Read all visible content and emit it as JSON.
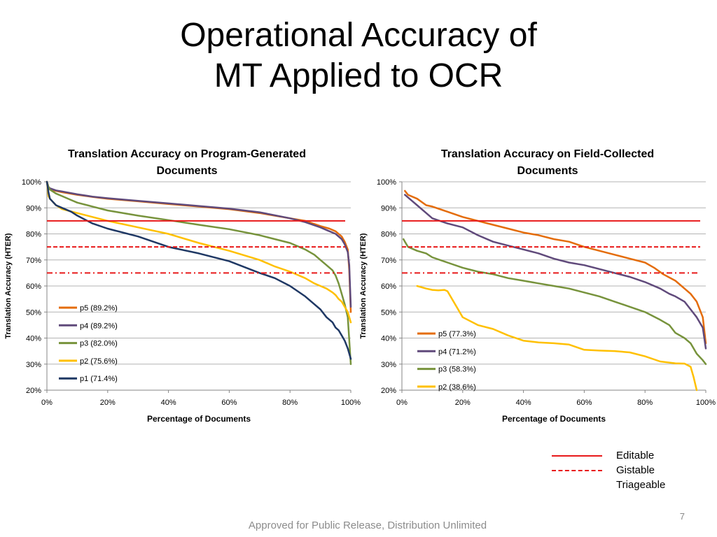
{
  "slide": {
    "title_line1": "Operational Accuracy of",
    "title_line2": "MT Applied to OCR",
    "page_number": "7",
    "footer": "Approved for Public Release, Distribution Unlimited"
  },
  "threshold_legend": [
    {
      "label": "Editable",
      "style": "solid",
      "color": "#e8191a"
    },
    {
      "label": "Gistable",
      "style": "dashed",
      "color": "#e8191a"
    },
    {
      "label": "Triageable",
      "style": "dashdot",
      "color": "#e8191a"
    }
  ],
  "chart_data": [
    {
      "type": "line",
      "title": "Translation Accuracy on Program-Generated Documents",
      "title_lines": [
        "Translation Accuracy on Program-Generated",
        "Documents"
      ],
      "xlabel": "Percentage of Documents",
      "ylabel": "Translation Accuracy (HTER)",
      "xlim": [
        0,
        100
      ],
      "ylim": [
        20,
        100
      ],
      "x_ticks": [
        "0%",
        "20%",
        "40%",
        "60%",
        "80%",
        "100%"
      ],
      "y_ticks": [
        "20%",
        "30%",
        "40%",
        "50%",
        "60%",
        "70%",
        "80%",
        "90%",
        "100%"
      ],
      "grid": true,
      "legend_position": "lower-left",
      "thresholds": [
        {
          "name": "Editable",
          "value": 85,
          "style": "solid",
          "color": "#e8191a"
        },
        {
          "name": "Gistable",
          "value": 75,
          "style": "dashed",
          "color": "#e8191a"
        },
        {
          "name": "Triageable",
          "value": 65,
          "style": "dashdot",
          "color": "#e8191a"
        }
      ],
      "series": [
        {
          "name": "p5 (89.2%)",
          "color": "#e46c0a",
          "x": [
            0,
            0.5,
            1,
            3,
            5,
            10,
            15,
            20,
            30,
            40,
            50,
            60,
            70,
            80,
            85,
            90,
            93,
            95,
            97,
            98,
            99,
            99.5,
            100
          ],
          "y": [
            100,
            98,
            97,
            96.5,
            96,
            95,
            94.2,
            93.5,
            92.5,
            91.5,
            90.5,
            89.5,
            88,
            86,
            85,
            83,
            82,
            81,
            79,
            77,
            74,
            66,
            50
          ]
        },
        {
          "name": "p4 (89.2%)",
          "color": "#604a7b",
          "x": [
            0,
            0.5,
            1,
            3,
            5,
            10,
            15,
            20,
            30,
            40,
            50,
            60,
            70,
            80,
            85,
            90,
            93,
            95,
            97,
            98,
            99,
            99.5,
            100
          ],
          "y": [
            100,
            98,
            97.5,
            96.7,
            96.3,
            95.2,
            94.3,
            93.7,
            92.7,
            91.7,
            90.7,
            89.7,
            88.3,
            86,
            84.5,
            82.5,
            81,
            80,
            78,
            76,
            73,
            68,
            52
          ]
        },
        {
          "name": "p3 (82.0%)",
          "color": "#77933c",
          "x": [
            0,
            0.5,
            1,
            3,
            5,
            8,
            10,
            15,
            20,
            30,
            40,
            50,
            60,
            70,
            75,
            80,
            85,
            88,
            90,
            92,
            94,
            95,
            96,
            97,
            98,
            99,
            100
          ],
          "y": [
            100,
            98,
            97,
            95.5,
            94.5,
            93,
            92,
            90.5,
            89,
            87,
            85.3,
            83.5,
            81.8,
            79.5,
            78,
            76.5,
            74,
            72,
            70,
            68,
            66,
            64,
            61,
            57,
            53,
            48,
            30
          ]
        },
        {
          "name": "p2 (75.6%)",
          "color": "#ffc000",
          "x": [
            0,
            0.5,
            1,
            3,
            5,
            10,
            15,
            20,
            30,
            40,
            50,
            60,
            70,
            75,
            80,
            85,
            88,
            90,
            92,
            94,
            95,
            96,
            97,
            98,
            99,
            100
          ],
          "y": [
            100,
            94.5,
            93.5,
            91,
            89.5,
            88,
            86.5,
            85,
            82.5,
            80,
            76.5,
            73.5,
            70,
            67.5,
            65.5,
            63,
            61,
            60,
            59,
            57.5,
            56.5,
            55,
            54,
            52,
            50,
            46
          ]
        },
        {
          "name": "p1 (71.4%)",
          "color": "#1f3864",
          "x": [
            0,
            0.5,
            1,
            3,
            5,
            8,
            10,
            15,
            20,
            30,
            40,
            50,
            60,
            70,
            75,
            80,
            85,
            88,
            90,
            92,
            94,
            95,
            96,
            97,
            98,
            99,
            100
          ],
          "y": [
            100,
            96,
            93.5,
            91,
            90,
            88.5,
            87,
            84,
            82,
            79,
            75,
            72.5,
            69.5,
            65,
            63,
            60,
            56,
            53,
            51,
            48,
            46,
            44,
            43,
            41,
            39,
            36,
            32
          ]
        }
      ]
    },
    {
      "type": "line",
      "title": "Translation Accuracy on Field-Collected Documents",
      "title_lines": [
        "Translation Accuracy on Field-Collected",
        "Documents"
      ],
      "xlabel": "Percentage of Documents",
      "ylabel": "Translation Accuracy (HTER)",
      "xlim": [
        0,
        100
      ],
      "ylim": [
        20,
        100
      ],
      "x_ticks": [
        "0%",
        "20%",
        "40%",
        "60%",
        "80%",
        "100%"
      ],
      "y_ticks": [
        "20%",
        "30%",
        "40%",
        "50%",
        "60%",
        "70%",
        "80%",
        "90%",
        "100%"
      ],
      "grid": true,
      "legend_position": "lower-left",
      "thresholds": [
        {
          "name": "Editable",
          "value": 85,
          "style": "solid",
          "color": "#e8191a"
        },
        {
          "name": "Gistable",
          "value": 75,
          "style": "dashed",
          "color": "#e8191a"
        },
        {
          "name": "Triageable",
          "value": 65,
          "style": "dashdot",
          "color": "#e8191a"
        }
      ],
      "series": [
        {
          "name": "p5 (77.3%)",
          "color": "#e46c0a",
          "x": [
            1,
            2,
            5,
            8,
            10,
            15,
            20,
            25,
            30,
            35,
            40,
            45,
            50,
            55,
            60,
            65,
            70,
            75,
            80,
            83,
            86,
            90,
            93,
            95,
            97,
            99,
            100
          ],
          "y": [
            96.5,
            95,
            93.5,
            91,
            90.5,
            88.5,
            86.5,
            85,
            83.5,
            82,
            80.5,
            79.5,
            78,
            77,
            75,
            73.5,
            72,
            70.5,
            69,
            67,
            64.5,
            62,
            59,
            57,
            54,
            48,
            38
          ]
        },
        {
          "name": "p4 (71.2%)",
          "color": "#604a7b",
          "x": [
            1,
            3,
            5,
            8,
            10,
            15,
            20,
            25,
            30,
            35,
            40,
            45,
            50,
            55,
            60,
            65,
            70,
            75,
            80,
            85,
            88,
            90,
            93,
            95,
            97,
            99,
            100
          ],
          "y": [
            95,
            93,
            91,
            88,
            86,
            84,
            82.5,
            79.5,
            77,
            75.5,
            74,
            72.5,
            70.5,
            69,
            68,
            66.5,
            65,
            63.5,
            61.5,
            59,
            57,
            56,
            54,
            51,
            48,
            44,
            36
          ]
        },
        {
          "name": "p3 (58.3%)",
          "color": "#77933c",
          "x": [
            0.5,
            1,
            2,
            5,
            8,
            10,
            15,
            20,
            25,
            30,
            35,
            40,
            45,
            50,
            55,
            60,
            65,
            70,
            75,
            80,
            85,
            88,
            90,
            93,
            95,
            97,
            99,
            100
          ],
          "y": [
            78,
            77,
            75,
            73.5,
            72.5,
            71,
            69,
            67,
            65.5,
            64.5,
            63,
            62,
            61,
            60,
            59,
            57.5,
            56,
            54,
            52,
            50,
            47,
            45,
            42,
            40,
            38,
            34,
            31.5,
            30
          ]
        },
        {
          "name": "p2 (38.6%)",
          "color": "#ffc000",
          "x": [
            5,
            8,
            10,
            12,
            14,
            15,
            16,
            18,
            20,
            25,
            30,
            35,
            40,
            45,
            50,
            55,
            60,
            65,
            70,
            75,
            80,
            85,
            90,
            93,
            95,
            96,
            97
          ],
          "y": [
            60,
            59,
            58.5,
            58.3,
            58.5,
            58,
            56,
            52,
            48,
            45,
            43.5,
            41,
            39,
            38.3,
            38,
            37.5,
            35.5,
            35.2,
            35,
            34.5,
            33,
            31,
            30.3,
            30.2,
            29,
            25,
            20
          ]
        }
      ]
    }
  ]
}
